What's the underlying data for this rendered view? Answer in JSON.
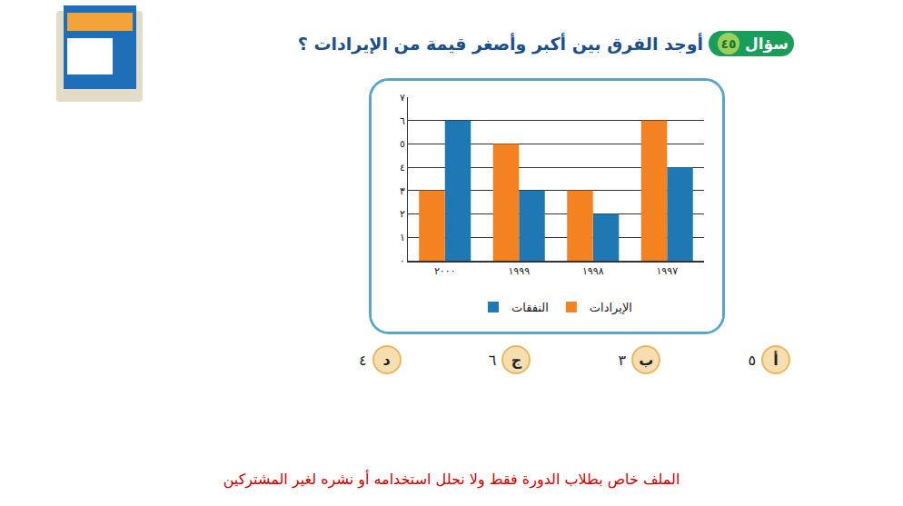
{
  "question": {
    "label": "سؤال",
    "number": "٤٥",
    "text": "أوجد الفرق بين أكبر وأصغر قيمة من الإيرادات ؟"
  },
  "options": [
    {
      "letter": "أ",
      "text": "٥"
    },
    {
      "letter": "ب",
      "text": "٣"
    },
    {
      "letter": "ج",
      "text": "٦"
    },
    {
      "letter": "د",
      "text": "٤"
    }
  ],
  "footer": "الملف خاص بطلاب الدورة فقط ولا نحلل استخدامه أو نشره لغير المشتركين",
  "chart_data": {
    "type": "bar",
    "categories": [
      "١٩٩٧",
      "١٩٩٨",
      "١٩٩٩",
      "٢٠٠٠"
    ],
    "series": [
      {
        "name": "النفقات",
        "color": "#1f78b4",
        "values": [
          4,
          2,
          3,
          6
        ]
      },
      {
        "name": "الإيرادات",
        "color": "#f58220",
        "values": [
          6,
          3,
          5,
          3
        ]
      }
    ],
    "ylim": [
      0,
      7
    ],
    "yticks": [
      {
        "value": 0,
        "label": "٠"
      },
      {
        "value": 1,
        "label": "١"
      },
      {
        "value": 2,
        "label": "٢"
      },
      {
        "value": 3,
        "label": "٣"
      },
      {
        "value": 4,
        "label": "٤"
      },
      {
        "value": 5,
        "label": "٥"
      },
      {
        "value": 6,
        "label": "٦"
      },
      {
        "value": 7,
        "label": "٧"
      }
    ],
    "grid": true,
    "legend": "bottom"
  }
}
